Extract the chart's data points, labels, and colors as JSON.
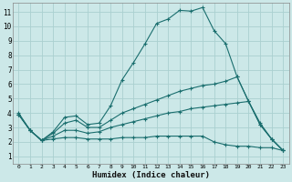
{
  "xlabel": "Humidex (Indice chaleur)",
  "background_color": "#cce8e8",
  "line_color": "#1a6e6e",
  "grid_color": "#aad0d0",
  "xlim_min": -0.5,
  "xlim_max": 23.5,
  "ylim_min": 0.5,
  "ylim_max": 11.6,
  "yticks": [
    1,
    2,
    3,
    4,
    5,
    6,
    7,
    8,
    9,
    10,
    11
  ],
  "xticks": [
    0,
    1,
    2,
    3,
    4,
    5,
    6,
    7,
    8,
    9,
    10,
    11,
    12,
    13,
    14,
    15,
    16,
    17,
    18,
    19,
    20,
    21,
    22,
    23
  ],
  "lines": [
    {
      "x": [
        0,
        1,
        2,
        3,
        4,
        5,
        6,
        7,
        8,
        9,
        10,
        11,
        12,
        13,
        14,
        15,
        16,
        17,
        18,
        19,
        20,
        21,
        22,
        23
      ],
      "y": [
        4.0,
        2.8,
        2.1,
        2.7,
        3.7,
        3.8,
        3.2,
        3.3,
        4.5,
        6.3,
        7.5,
        8.8,
        10.2,
        10.5,
        11.1,
        11.05,
        11.3,
        9.7,
        8.8,
        6.5,
        4.8,
        3.2,
        2.2,
        1.4
      ]
    },
    {
      "x": [
        0,
        1,
        2,
        3,
        4,
        5,
        6,
        7,
        8,
        9,
        10,
        11,
        12,
        13,
        14,
        15,
        16,
        17,
        18,
        19,
        20,
        21,
        22,
        23
      ],
      "y": [
        3.9,
        2.8,
        2.1,
        2.6,
        3.3,
        3.5,
        3.0,
        3.0,
        3.5,
        4.0,
        4.3,
        4.6,
        4.9,
        5.2,
        5.5,
        5.7,
        5.9,
        6.0,
        6.2,
        6.5,
        4.8,
        3.2,
        2.2,
        1.4
      ]
    },
    {
      "x": [
        0,
        1,
        2,
        3,
        4,
        5,
        6,
        7,
        8,
        9,
        10,
        11,
        12,
        13,
        14,
        15,
        16,
        17,
        18,
        19,
        20,
        21,
        22,
        23
      ],
      "y": [
        3.9,
        2.8,
        2.1,
        2.4,
        2.8,
        2.8,
        2.6,
        2.7,
        3.0,
        3.2,
        3.4,
        3.6,
        3.8,
        4.0,
        4.1,
        4.3,
        4.4,
        4.5,
        4.6,
        4.7,
        4.8,
        3.3,
        2.2,
        1.4
      ]
    },
    {
      "x": [
        0,
        1,
        2,
        3,
        4,
        5,
        6,
        7,
        8,
        9,
        10,
        11,
        12,
        13,
        14,
        15,
        16,
        17,
        18,
        19,
        20,
        21,
        22,
        23
      ],
      "y": [
        3.9,
        2.8,
        2.1,
        2.2,
        2.3,
        2.3,
        2.2,
        2.2,
        2.2,
        2.3,
        2.3,
        2.3,
        2.4,
        2.4,
        2.4,
        2.4,
        2.4,
        2.0,
        1.8,
        1.7,
        1.7,
        1.6,
        1.6,
        1.4
      ]
    }
  ]
}
